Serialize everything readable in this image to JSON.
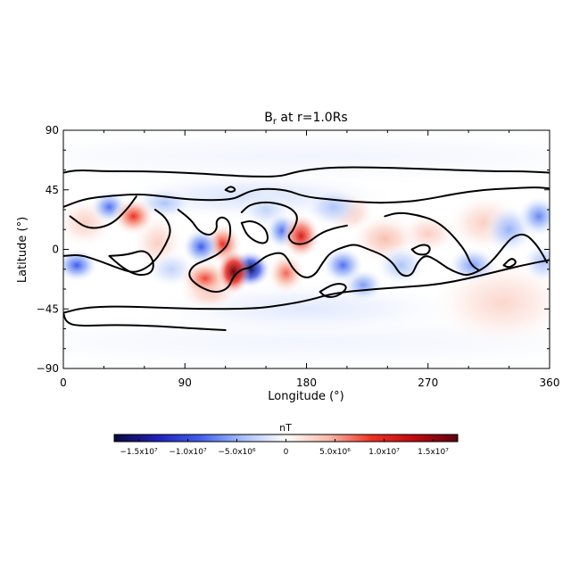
{
  "chart_data": {
    "type": "heatmap",
    "title_main": "B",
    "title_sub": "r",
    "title_rest": " at r=1.0Rs",
    "xlabel": "Longitude (°)",
    "ylabel": "Latitude (°)",
    "xlim": [
      0,
      360
    ],
    "ylim": [
      -90,
      90
    ],
    "xticks": [
      0,
      90,
      180,
      270,
      360
    ],
    "yticks": [
      -90,
      -45,
      0,
      45,
      90
    ],
    "grid": false,
    "colorbar": {
      "label": "nT",
      "range": [
        -17500000,
        17500000
      ],
      "ticks": [
        {
          "value": -15000000,
          "label": "−1.5x10⁷"
        },
        {
          "value": -10000000,
          "label": "−1.0x10⁷"
        },
        {
          "value": -5000000,
          "label": "−5.0x10⁶"
        },
        {
          "value": 0,
          "label": "0"
        },
        {
          "value": 5000000,
          "label": "5.0x10⁶"
        },
        {
          "value": 10000000,
          "label": "1.0x10⁷"
        },
        {
          "value": 15000000,
          "label": "1.5x10⁷"
        }
      ],
      "colors": [
        "#0b0a3d",
        "#2020b8",
        "#4060f0",
        "#a8c0f8",
        "#ffffff",
        "#f8b8a8",
        "#f03020",
        "#c00810",
        "#5a0410"
      ]
    },
    "field_spots": [
      {
        "lon": 138,
        "lat": -15,
        "value": -17000000,
        "rlon": 10,
        "rlat": 9
      },
      {
        "lon": 126,
        "lat": -17,
        "value": 17000000,
        "rlon": 8,
        "rlat": 11
      },
      {
        "lon": 118,
        "lat": 4,
        "value": 9000000,
        "rlon": 9,
        "rlat": 10
      },
      {
        "lon": 105,
        "lat": -22,
        "value": 8000000,
        "rlon": 12,
        "rlat": 9
      },
      {
        "lon": 176,
        "lat": 10,
        "value": 11000000,
        "rlon": 9,
        "rlat": 11
      },
      {
        "lon": 52,
        "lat": 25,
        "value": 9000000,
        "rlon": 10,
        "rlat": 9
      },
      {
        "lon": 165,
        "lat": -18,
        "value": 7000000,
        "rlon": 9,
        "rlat": 10
      },
      {
        "lon": 108,
        "lat": -32,
        "value": 4000000,
        "rlon": 14,
        "rlat": 9
      },
      {
        "lon": 212,
        "lat": 28,
        "value": 4000000,
        "rlon": 12,
        "rlat": 10
      },
      {
        "lon": 238,
        "lat": 8,
        "value": 4000000,
        "rlon": 16,
        "rlat": 12
      },
      {
        "lon": 312,
        "lat": 20,
        "value": 3000000,
        "rlon": 18,
        "rlat": 14
      },
      {
        "lon": 270,
        "lat": 12,
        "value": 3000000,
        "rlon": 14,
        "rlat": 10
      },
      {
        "lon": 325,
        "lat": -40,
        "value": 2500000,
        "rlon": 35,
        "rlat": 22
      },
      {
        "lon": 70,
        "lat": 5,
        "value": 3000000,
        "rlon": 12,
        "rlat": 14
      },
      {
        "lon": 16,
        "lat": 20,
        "value": 3000000,
        "rlon": 14,
        "rlat": 12
      },
      {
        "lon": 34,
        "lat": 32,
        "value": -8000000,
        "rlon": 9,
        "rlat": 8
      },
      {
        "lon": 10,
        "lat": -12,
        "value": -9000000,
        "rlon": 10,
        "rlat": 8
      },
      {
        "lon": 102,
        "lat": 2,
        "value": -9000000,
        "rlon": 9,
        "rlat": 9
      },
      {
        "lon": 162,
        "lat": 14,
        "value": -8000000,
        "rlon": 8,
        "rlat": 9
      },
      {
        "lon": 207,
        "lat": -12,
        "value": -8000000,
        "rlon": 10,
        "rlat": 9
      },
      {
        "lon": 222,
        "lat": -27,
        "value": -6000000,
        "rlon": 10,
        "rlat": 8
      },
      {
        "lon": 250,
        "lat": -12,
        "value": -4000000,
        "rlon": 12,
        "rlat": 10
      },
      {
        "lon": 303,
        "lat": -12,
        "value": -6000000,
        "rlon": 12,
        "rlat": 9
      },
      {
        "lon": 330,
        "lat": 15,
        "value": -5000000,
        "rlon": 12,
        "rlat": 12
      },
      {
        "lon": 352,
        "lat": 25,
        "value": -7000000,
        "rlon": 10,
        "rlat": 10
      },
      {
        "lon": 355,
        "lat": -10,
        "value": -4000000,
        "rlon": 10,
        "rlat": 10
      },
      {
        "lon": 75,
        "lat": 35,
        "value": -4000000,
        "rlon": 14,
        "rlat": 8
      },
      {
        "lon": 200,
        "lat": 32,
        "value": -4000000,
        "rlon": 14,
        "rlat": 10
      },
      {
        "lon": 150,
        "lat": 30,
        "value": -3000000,
        "rlon": 12,
        "rlat": 9
      },
      {
        "lon": 80,
        "lat": -15,
        "value": -3000000,
        "rlon": 12,
        "rlat": 9
      },
      {
        "lon": 140,
        "lat": 40,
        "value": -2000000,
        "rlon": 70,
        "rlat": 12
      },
      {
        "lon": 180,
        "lat": -45,
        "value": -1500000,
        "rlon": 80,
        "rlat": 14
      },
      {
        "lon": 180,
        "lat": 70,
        "value": -700000,
        "rlon": 200,
        "rlat": 15
      },
      {
        "lon": 180,
        "lat": -70,
        "value": -700000,
        "rlon": 200,
        "rlat": 15
      }
    ],
    "contours": [
      [
        [
          0,
          58
        ],
        [
          10,
          60
        ],
        [
          30,
          59
        ],
        [
          60,
          59
        ],
        [
          90,
          58
        ],
        [
          120,
          56
        ],
        [
          140,
          55
        ],
        [
          160,
          55
        ],
        [
          170,
          58
        ],
        [
          180,
          60
        ],
        [
          200,
          62
        ],
        [
          230,
          62
        ],
        [
          260,
          61
        ],
        [
          290,
          60
        ],
        [
          320,
          59
        ],
        [
          340,
          59
        ],
        [
          360,
          58
        ]
      ],
      [
        [
          0,
          -48
        ],
        [
          15,
          -44
        ],
        [
          40,
          -43
        ],
        [
          70,
          -44
        ],
        [
          100,
          -45
        ],
        [
          130,
          -45
        ],
        [
          150,
          -44
        ],
        [
          180,
          -39
        ],
        [
          200,
          -33
        ],
        [
          230,
          -30
        ],
        [
          260,
          -28
        ],
        [
          280,
          -26
        ],
        [
          300,
          -22
        ],
        [
          320,
          -17
        ],
        [
          340,
          -12
        ],
        [
          360,
          -8
        ]
      ],
      [
        [
          0,
          -48
        ],
        [
          2,
          -55
        ],
        [
          10,
          -58
        ],
        [
          40,
          -57
        ],
        [
          70,
          -58
        ],
        [
          100,
          -60
        ],
        [
          120,
          -61
        ]
      ],
      [
        [
          0,
          32
        ],
        [
          15,
          38
        ],
        [
          30,
          40
        ],
        [
          55,
          42
        ],
        [
          75,
          40
        ],
        [
          90,
          38
        ],
        [
          110,
          37
        ],
        [
          125,
          38
        ],
        [
          130,
          40
        ],
        [
          138,
          44
        ],
        [
          148,
          46
        ],
        [
          165,
          45
        ],
        [
          178,
          40
        ],
        [
          195,
          38
        ],
        [
          215,
          36
        ],
        [
          235,
          35
        ],
        [
          255,
          36
        ],
        [
          270,
          38
        ],
        [
          290,
          42
        ],
        [
          310,
          45
        ],
        [
          330,
          46
        ],
        [
          350,
          47
        ],
        [
          360,
          46
        ]
      ],
      [
        [
          5,
          25
        ],
        [
          18,
          15
        ],
        [
          35,
          18
        ],
        [
          47,
          30
        ],
        [
          54,
          40
        ]
      ],
      [
        [
          0,
          -5
        ],
        [
          12,
          -4
        ],
        [
          25,
          -8
        ],
        [
          40,
          -14
        ],
        [
          52,
          -18
        ],
        [
          62,
          -14
        ],
        [
          70,
          -6
        ],
        [
          76,
          4
        ],
        [
          80,
          14
        ],
        [
          76,
          24
        ],
        [
          68,
          30
        ]
      ],
      [
        [
          34,
          -5
        ],
        [
          48,
          -4
        ],
        [
          60,
          0
        ],
        [
          67,
          -8
        ],
        [
          66,
          -18
        ],
        [
          55,
          -20
        ],
        [
          44,
          -14
        ],
        [
          34,
          -5
        ]
      ],
      [
        [
          85,
          30
        ],
        [
          95,
          22
        ],
        [
          100,
          14
        ],
        [
          108,
          10
        ],
        [
          114,
          15
        ],
        [
          113,
          22
        ],
        [
          118,
          25
        ],
        [
          124,
          20
        ],
        [
          123,
          5
        ],
        [
          116,
          -3
        ],
        [
          106,
          -8
        ],
        [
          96,
          -12
        ],
        [
          92,
          -20
        ],
        [
          100,
          -28
        ],
        [
          112,
          -33
        ],
        [
          122,
          -30
        ],
        [
          126,
          -20
        ],
        [
          132,
          -15
        ],
        [
          138,
          -14
        ],
        [
          144,
          -10
        ],
        [
          150,
          -5
        ],
        [
          160,
          -2
        ],
        [
          165,
          -5
        ],
        [
          170,
          -15
        ],
        [
          178,
          -22
        ],
        [
          186,
          -20
        ],
        [
          192,
          -10
        ],
        [
          198,
          -2
        ],
        [
          208,
          2
        ],
        [
          216,
          4
        ],
        [
          226,
          0
        ],
        [
          236,
          -4
        ],
        [
          244,
          -10
        ],
        [
          250,
          -20
        ],
        [
          258,
          -20
        ],
        [
          262,
          -10
        ],
        [
          268,
          -4
        ],
        [
          276,
          -8
        ],
        [
          284,
          -14
        ],
        [
          292,
          -18
        ],
        [
          300,
          -20
        ],
        [
          312,
          -14
        ],
        [
          320,
          -6
        ],
        [
          326,
          2
        ],
        [
          333,
          10
        ],
        [
          342,
          12
        ],
        [
          350,
          4
        ],
        [
          355,
          -4
        ],
        [
          358,
          -10
        ]
      ],
      [
        [
          132,
          28
        ],
        [
          138,
          34
        ],
        [
          150,
          36
        ],
        [
          162,
          34
        ],
        [
          170,
          30
        ],
        [
          174,
          24
        ],
        [
          170,
          14
        ],
        [
          166,
          10
        ],
        [
          170,
          4
        ],
        [
          180,
          4
        ],
        [
          190,
          12
        ],
        [
          200,
          16
        ],
        [
          210,
          18
        ]
      ],
      [
        [
          238,
          25
        ],
        [
          248,
          28
        ],
        [
          262,
          26
        ],
        [
          275,
          22
        ],
        [
          285,
          14
        ],
        [
          292,
          6
        ],
        [
          298,
          -2
        ],
        [
          302,
          -12
        ],
        [
          308,
          -16
        ]
      ],
      [
        [
          132,
          20
        ],
        [
          136,
          10
        ],
        [
          146,
          4
        ],
        [
          152,
          6
        ],
        [
          150,
          16
        ],
        [
          140,
          22
        ],
        [
          132,
          20
        ]
      ],
      [
        [
          190,
          -32
        ],
        [
          200,
          -26
        ],
        [
          208,
          -26
        ],
        [
          210,
          -30
        ],
        [
          202,
          -36
        ],
        [
          194,
          -36
        ],
        [
          190,
          -32
        ]
      ],
      [
        [
          258,
          0
        ],
        [
          266,
          4
        ],
        [
          272,
          2
        ],
        [
          270,
          -4
        ],
        [
          262,
          -4
        ],
        [
          258,
          0
        ]
      ],
      [
        [
          326,
          -12
        ],
        [
          332,
          -6
        ],
        [
          336,
          -10
        ],
        [
          330,
          -14
        ],
        [
          326,
          -12
        ]
      ],
      [
        [
          120,
          45
        ],
        [
          124,
          48
        ],
        [
          128,
          45
        ],
        [
          124,
          43
        ],
        [
          120,
          45
        ]
      ]
    ]
  }
}
